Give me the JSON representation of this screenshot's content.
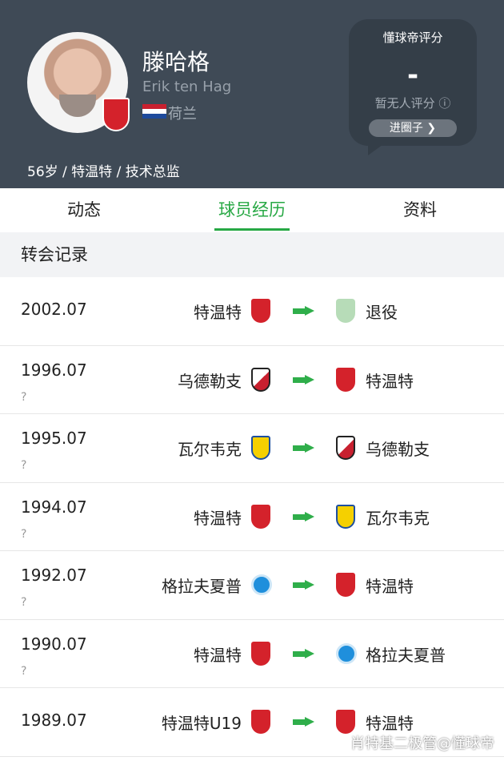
{
  "header": {
    "name": "滕哈格",
    "english_name": "Erik ten Hag",
    "country": "荷兰",
    "meta": "56岁 / 特温特 / 技术总监",
    "rating": {
      "title": "懂球帝评分",
      "value": "-",
      "note": "暂无人评分 ⓘ",
      "button": "进圈子 ❯"
    }
  },
  "tabs": [
    {
      "label": "动态"
    },
    {
      "label": "球员经历",
      "active": true
    },
    {
      "label": "资料"
    }
  ],
  "section_title": "转会记录",
  "transfers": [
    {
      "date": "2002.07",
      "from": "特温特",
      "from_logo": "twente",
      "to": "退役",
      "to_logo": "retired"
    },
    {
      "date": "1996.07",
      "note": "?",
      "from": "乌德勒支",
      "from_logo": "utrecht",
      "to": "特温特",
      "to_logo": "twente"
    },
    {
      "date": "1995.07",
      "note": "?",
      "from": "瓦尔韦克",
      "from_logo": "rkc",
      "to": "乌德勒支",
      "to_logo": "utrecht"
    },
    {
      "date": "1994.07",
      "note": "?",
      "from": "特温特",
      "from_logo": "twente",
      "to": "瓦尔韦克",
      "to_logo": "rkc"
    },
    {
      "date": "1992.07",
      "note": "?",
      "from": "格拉夫夏普",
      "from_logo": "graaf",
      "to": "特温特",
      "to_logo": "twente"
    },
    {
      "date": "1990.07",
      "note": "?",
      "from": "特温特",
      "from_logo": "twente",
      "to": "格拉夫夏普",
      "to_logo": "graaf"
    },
    {
      "date": "1989.07",
      "from": "特温特U19",
      "from_logo": "twente",
      "to": "特温特",
      "to_logo": "twente"
    }
  ],
  "watermark": "肖特基二极管@懂球帝",
  "colors": {
    "header_bg": "#3f4a56",
    "accent": "#27a844"
  }
}
